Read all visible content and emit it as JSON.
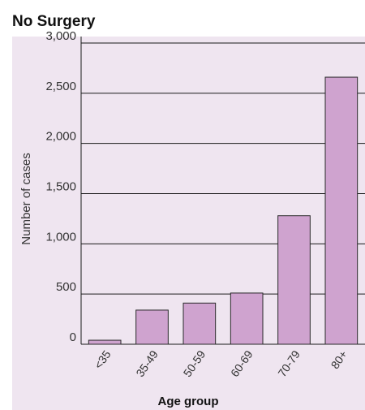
{
  "chart_data": {
    "type": "bar",
    "title": "No Surgery",
    "xlabel": "Age group",
    "ylabel": "Number of cases",
    "categories": [
      "<35",
      "35-49",
      "50-59",
      "60-69",
      "70-79",
      "80+"
    ],
    "values": [
      40,
      340,
      410,
      510,
      1280,
      2660
    ],
    "ylim": [
      0,
      3000
    ],
    "yticks": [
      "0",
      "500",
      "1,000",
      "1,500",
      "2,000",
      "2,500",
      "3,000"
    ],
    "grid": "horizontal",
    "colors": {
      "plot_background": "#efe5f0",
      "bar_fill": "#cfa3cf",
      "bar_stroke": "#2a2a2a",
      "grid": "#1a1a1a"
    }
  }
}
